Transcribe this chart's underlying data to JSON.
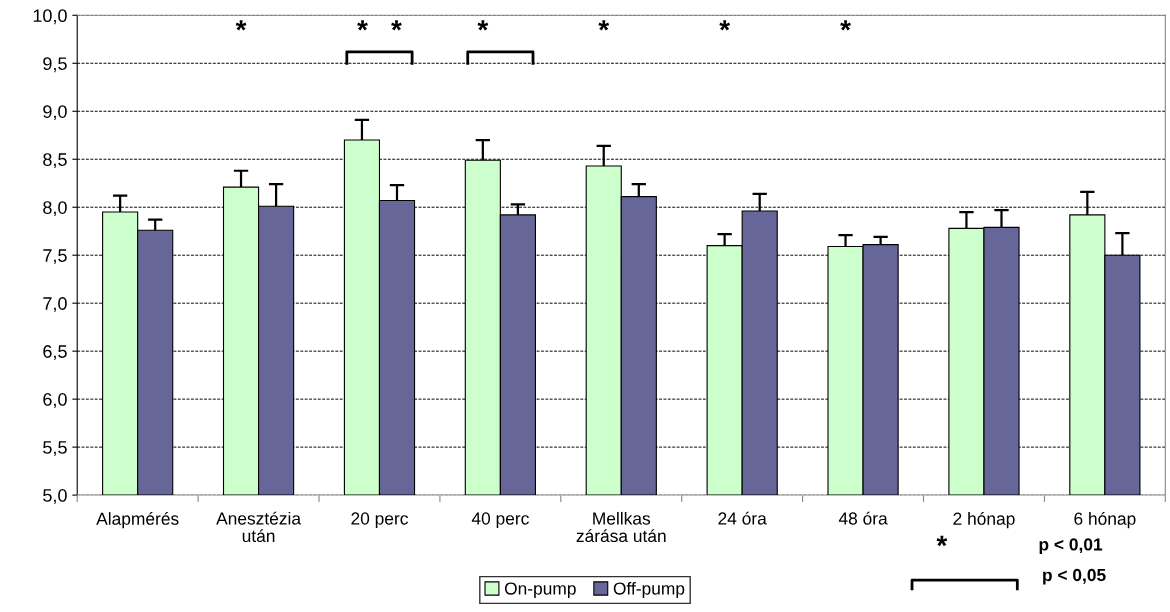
{
  "chart_data": {
    "type": "bar",
    "categories": [
      "Alapmérés",
      "Anesztézia\nután",
      "20 perc",
      "40 perc",
      "Mellkas\nzárása után",
      "24 óra",
      "48 óra",
      "2 hónap",
      "6 hónap"
    ],
    "series": [
      {
        "name": "On-pump",
        "color": "#ccffcc",
        "values": [
          7.95,
          8.21,
          8.7,
          8.49,
          8.43,
          7.6,
          7.59,
          7.78,
          7.92
        ],
        "errors": [
          [
            7.95,
            8.12
          ],
          [
            8.21,
            8.38
          ],
          [
            8.7,
            8.91
          ],
          [
            8.49,
            8.7
          ],
          [
            8.43,
            8.64
          ],
          [
            7.6,
            7.72
          ],
          [
            7.59,
            7.71
          ],
          [
            7.78,
            7.95
          ],
          [
            7.92,
            8.16
          ]
        ]
      },
      {
        "name": "Off-pump",
        "color": "#666699",
        "values": [
          7.76,
          8.01,
          8.07,
          7.92,
          8.11,
          7.96,
          7.61,
          7.79,
          7.5
        ],
        "errors": [
          [
            7.76,
            7.87
          ],
          [
            8.01,
            8.24
          ],
          [
            8.07,
            8.23
          ],
          [
            7.92,
            8.03
          ],
          [
            8.11,
            8.24
          ],
          [
            7.96,
            8.14
          ],
          [
            7.61,
            7.69
          ],
          [
            7.79,
            7.97
          ],
          [
            7.5,
            7.73
          ]
        ]
      }
    ],
    "ylim": [
      5.0,
      10.0
    ],
    "yticks": [
      {
        "value": 5.0,
        "label": "5,0"
      },
      {
        "value": 5.5,
        "label": "5,5"
      },
      {
        "value": 6.0,
        "label": "6,0"
      },
      {
        "value": 6.5,
        "label": "6,5"
      },
      {
        "value": 7.0,
        "label": "7,0"
      },
      {
        "value": 7.5,
        "label": "7,5"
      },
      {
        "value": 8.0,
        "label": "8,0"
      },
      {
        "value": 8.5,
        "label": "8,5"
      },
      {
        "value": 9.0,
        "label": "9,0"
      },
      {
        "value": 9.5,
        "label": "9,5"
      },
      {
        "value": 10.0,
        "label": "10,0"
      }
    ],
    "grid": "y",
    "legend": "bottom",
    "annotations": [
      "*",
      "*   *",
      "*",
      "*",
      "*",
      "*",
      "*",
      "p < 0,01",
      "p < 0,05"
    ]
  }
}
